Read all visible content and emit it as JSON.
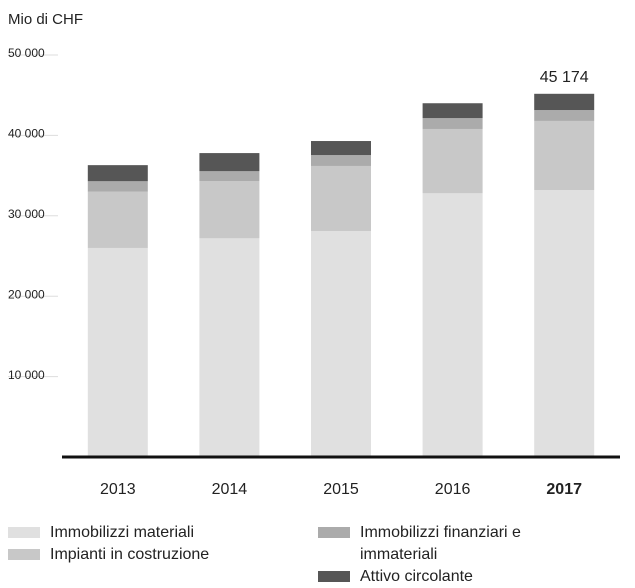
{
  "chart_data": {
    "type": "stacked_bar",
    "title": "Mio di CHF",
    "categories": [
      "2013",
      "2014",
      "2015",
      "2016",
      "2017"
    ],
    "series": [
      {
        "name": "Immobilizzi materiali",
        "color": "#e0e0e0",
        "values": [
          26000,
          27200,
          28100,
          32800,
          33200
        ]
      },
      {
        "name": "Impianti in costruzione",
        "color": "#c8c8c8",
        "values": [
          7000,
          7100,
          8100,
          8000,
          8600
        ]
      },
      {
        "name": "Immobilizzi finanziari e immateriali",
        "color": "#ababab",
        "values": [
          1300,
          1250,
          1350,
          1350,
          1350
        ]
      },
      {
        "name": "Attivo circolante",
        "color": "#565656",
        "values": [
          2000,
          2250,
          1750,
          1850,
          2024
        ]
      }
    ],
    "totals": [
      null,
      null,
      null,
      null,
      45174
    ],
    "value_labels": [
      null,
      null,
      null,
      null,
      "45 174"
    ],
    "ylim": [
      0,
      50000
    ],
    "yticks": [
      {
        "value": 10000,
        "label": "10 000"
      },
      {
        "value": 20000,
        "label": "20 000"
      },
      {
        "value": 30000,
        "label": "30 000"
      },
      {
        "value": 40000,
        "label": "40 000"
      },
      {
        "value": 50000,
        "label": "50 000"
      }
    ]
  }
}
